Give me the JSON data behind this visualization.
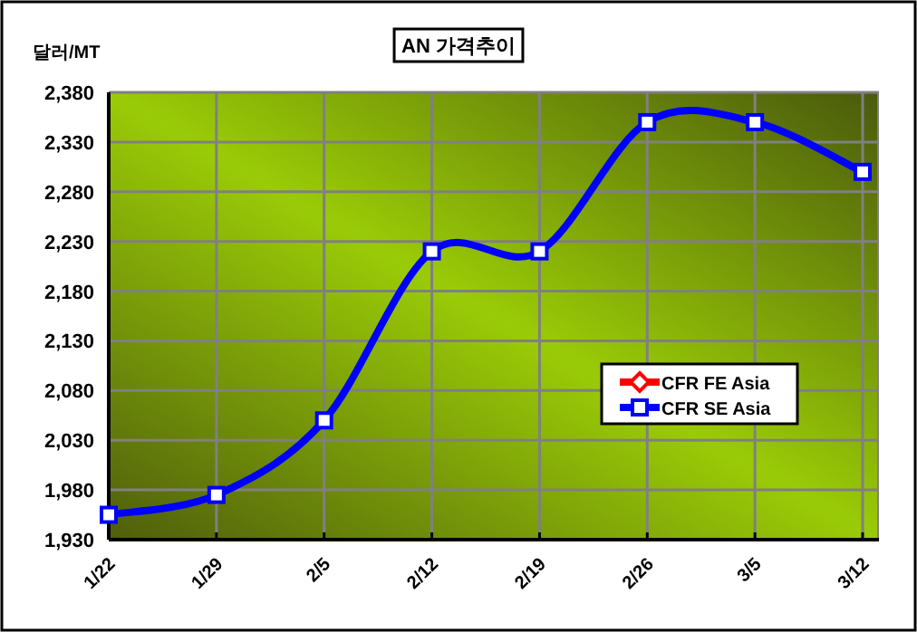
{
  "chart_data": {
    "type": "line",
    "title": "AN 가격추이",
    "ylabel": "달러/MT",
    "categories": [
      "1/22",
      "1/29",
      "2/5",
      "2/12",
      "2/19",
      "2/26",
      "3/5",
      "3/12"
    ],
    "series": [
      {
        "name": "CFR FE Asia",
        "color": "#ff0000",
        "marker": "diamond",
        "values": [
          null,
          null,
          null,
          null,
          null,
          null,
          null,
          null
        ]
      },
      {
        "name": "CFR SE Asia",
        "color": "#0000ff",
        "marker": "square",
        "values": [
          1955,
          1975,
          2050,
          2220,
          2220,
          2350,
          2350,
          2300
        ]
      }
    ],
    "ylim": [
      1930,
      2380
    ],
    "yticks": [
      {
        "value": 1930,
        "label": "1,930"
      },
      {
        "value": 1980,
        "label": "1,980"
      },
      {
        "value": 2030,
        "label": "2,030"
      },
      {
        "value": 2080,
        "label": "2,080"
      },
      {
        "value": 2130,
        "label": "2,130"
      },
      {
        "value": 2180,
        "label": "2,180"
      },
      {
        "value": 2230,
        "label": "2,230"
      },
      {
        "value": 2280,
        "label": "2,280"
      },
      {
        "value": 2330,
        "label": "2,330"
      },
      {
        "value": 2380,
        "label": "2,380"
      }
    ],
    "grid": true,
    "legend": "right",
    "line_style": "solid"
  }
}
